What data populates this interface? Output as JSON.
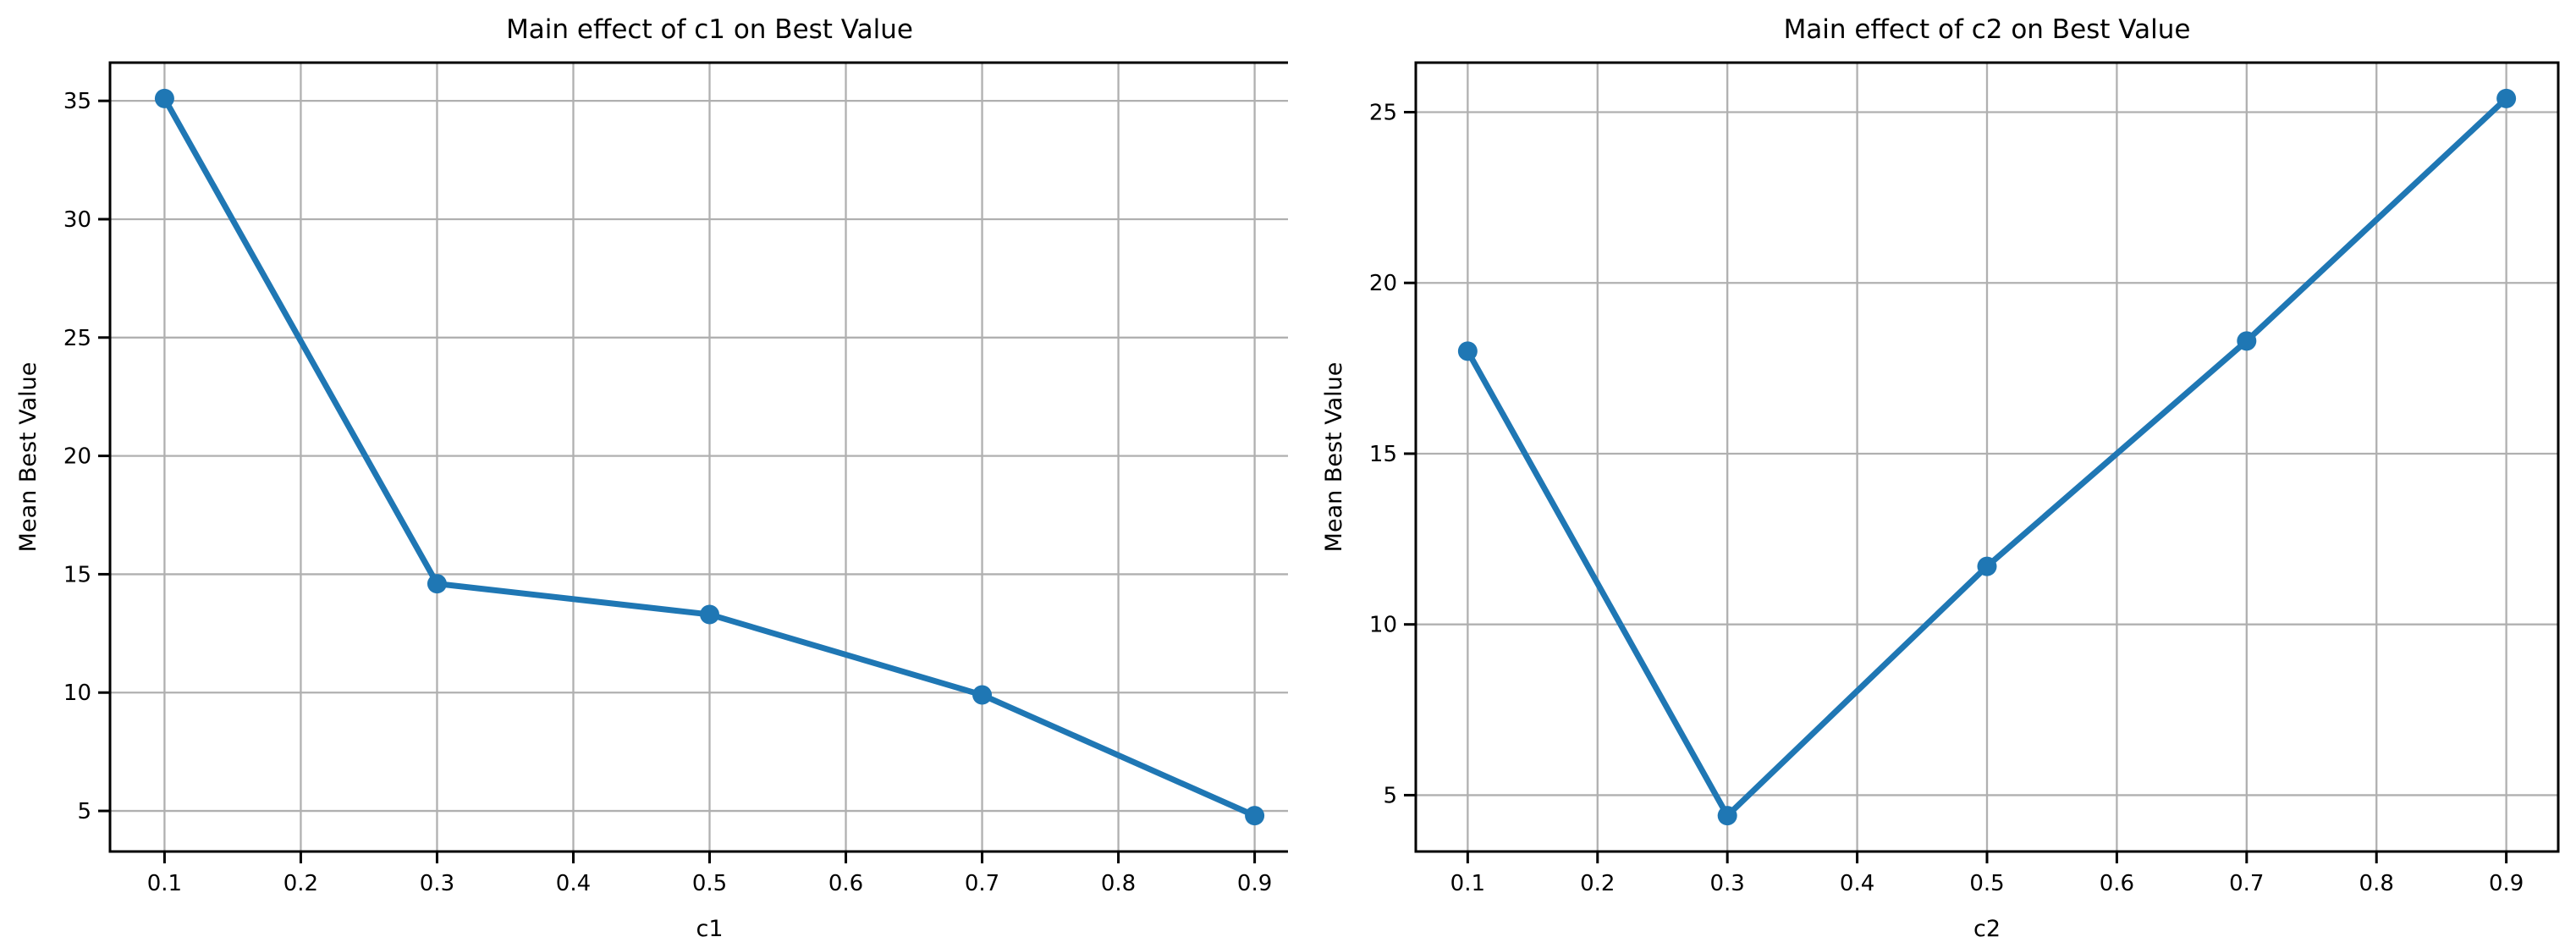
{
  "figure": {
    "background": "#ffffff",
    "line_color": "#1f77b4",
    "grid_color": "#b0b0b0",
    "spine_color": "#000000"
  },
  "chart_data": [
    {
      "type": "line",
      "title": "Main effect of c1 on Best Value",
      "xlabel": "c1",
      "ylabel": "Mean Best Value",
      "x": [
        0.1,
        0.3,
        0.5,
        0.7,
        0.9
      ],
      "y": [
        35.1,
        14.6,
        13.3,
        9.9,
        4.8
      ],
      "xtick_labels": [
        "0.1",
        "0.2",
        "0.3",
        "0.4",
        "0.5",
        "0.6",
        "0.7",
        "0.8",
        "0.9"
      ],
      "xticks": [
        0.1,
        0.2,
        0.3,
        0.4,
        0.5,
        0.6,
        0.7,
        0.8,
        0.9
      ],
      "ytick_labels": [
        "5",
        "10",
        "15",
        "20",
        "25",
        "30",
        "35"
      ],
      "yticks": [
        5,
        10,
        15,
        20,
        25,
        30,
        35
      ],
      "xlim": [
        0.06,
        0.94
      ],
      "ylim": [
        3.285,
        36.615
      ],
      "grid": true,
      "legend": null,
      "line_color": "#1f77b4",
      "marker": "circle"
    },
    {
      "type": "line",
      "title": "Main effect of c2 on Best Value",
      "xlabel": "c2",
      "ylabel": "Mean Best Value",
      "x": [
        0.1,
        0.3,
        0.5,
        0.7,
        0.9
      ],
      "y": [
        18.0,
        4.4,
        11.7,
        18.3,
        25.4
      ],
      "xtick_labels": [
        "0.1",
        "0.2",
        "0.3",
        "0.4",
        "0.5",
        "0.6",
        "0.7",
        "0.8",
        "0.9"
      ],
      "xticks": [
        0.1,
        0.2,
        0.3,
        0.4,
        0.5,
        0.6,
        0.7,
        0.8,
        0.9
      ],
      "ytick_labels": [
        "5",
        "10",
        "15",
        "20",
        "25"
      ],
      "yticks": [
        5,
        10,
        15,
        20,
        25
      ],
      "xlim": [
        0.06,
        0.94
      ],
      "ylim": [
        3.35,
        26.45
      ],
      "grid": true,
      "legend": null,
      "line_color": "#1f77b4",
      "marker": "circle"
    }
  ]
}
